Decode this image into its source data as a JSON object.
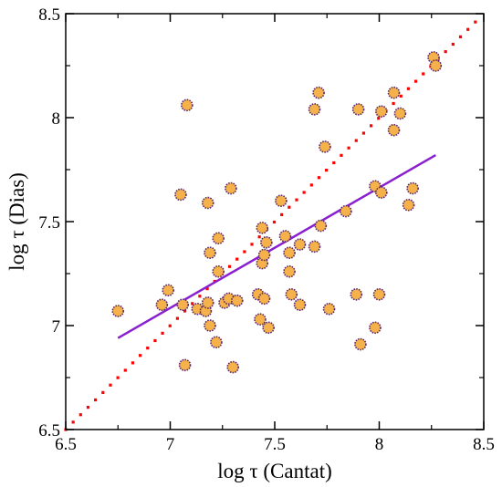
{
  "chart_data": {
    "type": "scatter",
    "xlabel": "log  τ  (Cantat)",
    "ylabel": "log  τ  (Dias)",
    "xlim": [
      6.5,
      8.5
    ],
    "ylim": [
      6.5,
      8.5
    ],
    "xticks": [
      "6.5",
      "7",
      "7.5",
      "8",
      "8.5"
    ],
    "yticks": [
      "6.5",
      "7",
      "7.5",
      "8",
      "8.5"
    ],
    "grid": false,
    "colors": {
      "marker_fill": "#f5b24a",
      "marker_edge": "#5a2a6e",
      "identity_line": "#ff0000",
      "fit_line": "#8a1fd0"
    },
    "series": [
      {
        "marker": "circle",
        "points": [
          [
            6.75,
            7.07
          ],
          [
            6.96,
            7.1
          ],
          [
            6.99,
            7.17
          ],
          [
            7.05,
            7.63
          ],
          [
            7.06,
            7.1
          ],
          [
            7.07,
            6.81
          ],
          [
            7.08,
            8.06
          ],
          [
            7.13,
            7.08
          ],
          [
            7.17,
            7.07
          ],
          [
            7.18,
            7.11
          ],
          [
            7.18,
            7.59
          ],
          [
            7.19,
            7.35
          ],
          [
            7.19,
            7.0
          ],
          [
            7.22,
            6.92
          ],
          [
            7.23,
            7.26
          ],
          [
            7.23,
            7.42
          ],
          [
            7.26,
            7.11
          ],
          [
            7.28,
            7.13
          ],
          [
            7.29,
            7.66
          ],
          [
            7.3,
            6.8
          ],
          [
            7.32,
            7.12
          ],
          [
            7.42,
            7.15
          ],
          [
            7.43,
            7.03
          ],
          [
            7.44,
            7.47
          ],
          [
            7.44,
            7.3
          ],
          [
            7.45,
            7.13
          ],
          [
            7.45,
            7.34
          ],
          [
            7.46,
            7.4
          ],
          [
            7.47,
            6.99
          ],
          [
            7.53,
            7.6
          ],
          [
            7.55,
            7.43
          ],
          [
            7.57,
            7.35
          ],
          [
            7.57,
            7.26
          ],
          [
            7.58,
            7.15
          ],
          [
            7.62,
            7.1
          ],
          [
            7.62,
            7.39
          ],
          [
            7.69,
            8.04
          ],
          [
            7.69,
            7.38
          ],
          [
            7.71,
            8.12
          ],
          [
            7.72,
            7.48
          ],
          [
            7.74,
            7.86
          ],
          [
            7.76,
            7.08
          ],
          [
            7.84,
            7.55
          ],
          [
            7.89,
            7.15
          ],
          [
            7.9,
            8.04
          ],
          [
            7.91,
            6.91
          ],
          [
            7.98,
            6.99
          ],
          [
            7.98,
            7.67
          ],
          [
            8.0,
            7.15
          ],
          [
            8.01,
            7.64
          ],
          [
            8.01,
            8.03
          ],
          [
            8.07,
            8.12
          ],
          [
            8.07,
            7.94
          ],
          [
            8.1,
            8.02
          ],
          [
            8.14,
            7.58
          ],
          [
            8.16,
            7.66
          ],
          [
            8.26,
            8.29
          ],
          [
            8.27,
            8.25
          ]
        ]
      }
    ],
    "identity_line": {
      "style": "dotted",
      "x": [
        6.5,
        8.46
      ],
      "y": [
        6.5,
        8.46
      ]
    },
    "fit_line": {
      "style": "solid",
      "x": [
        6.75,
        8.27
      ],
      "y": [
        6.94,
        7.82
      ]
    }
  }
}
